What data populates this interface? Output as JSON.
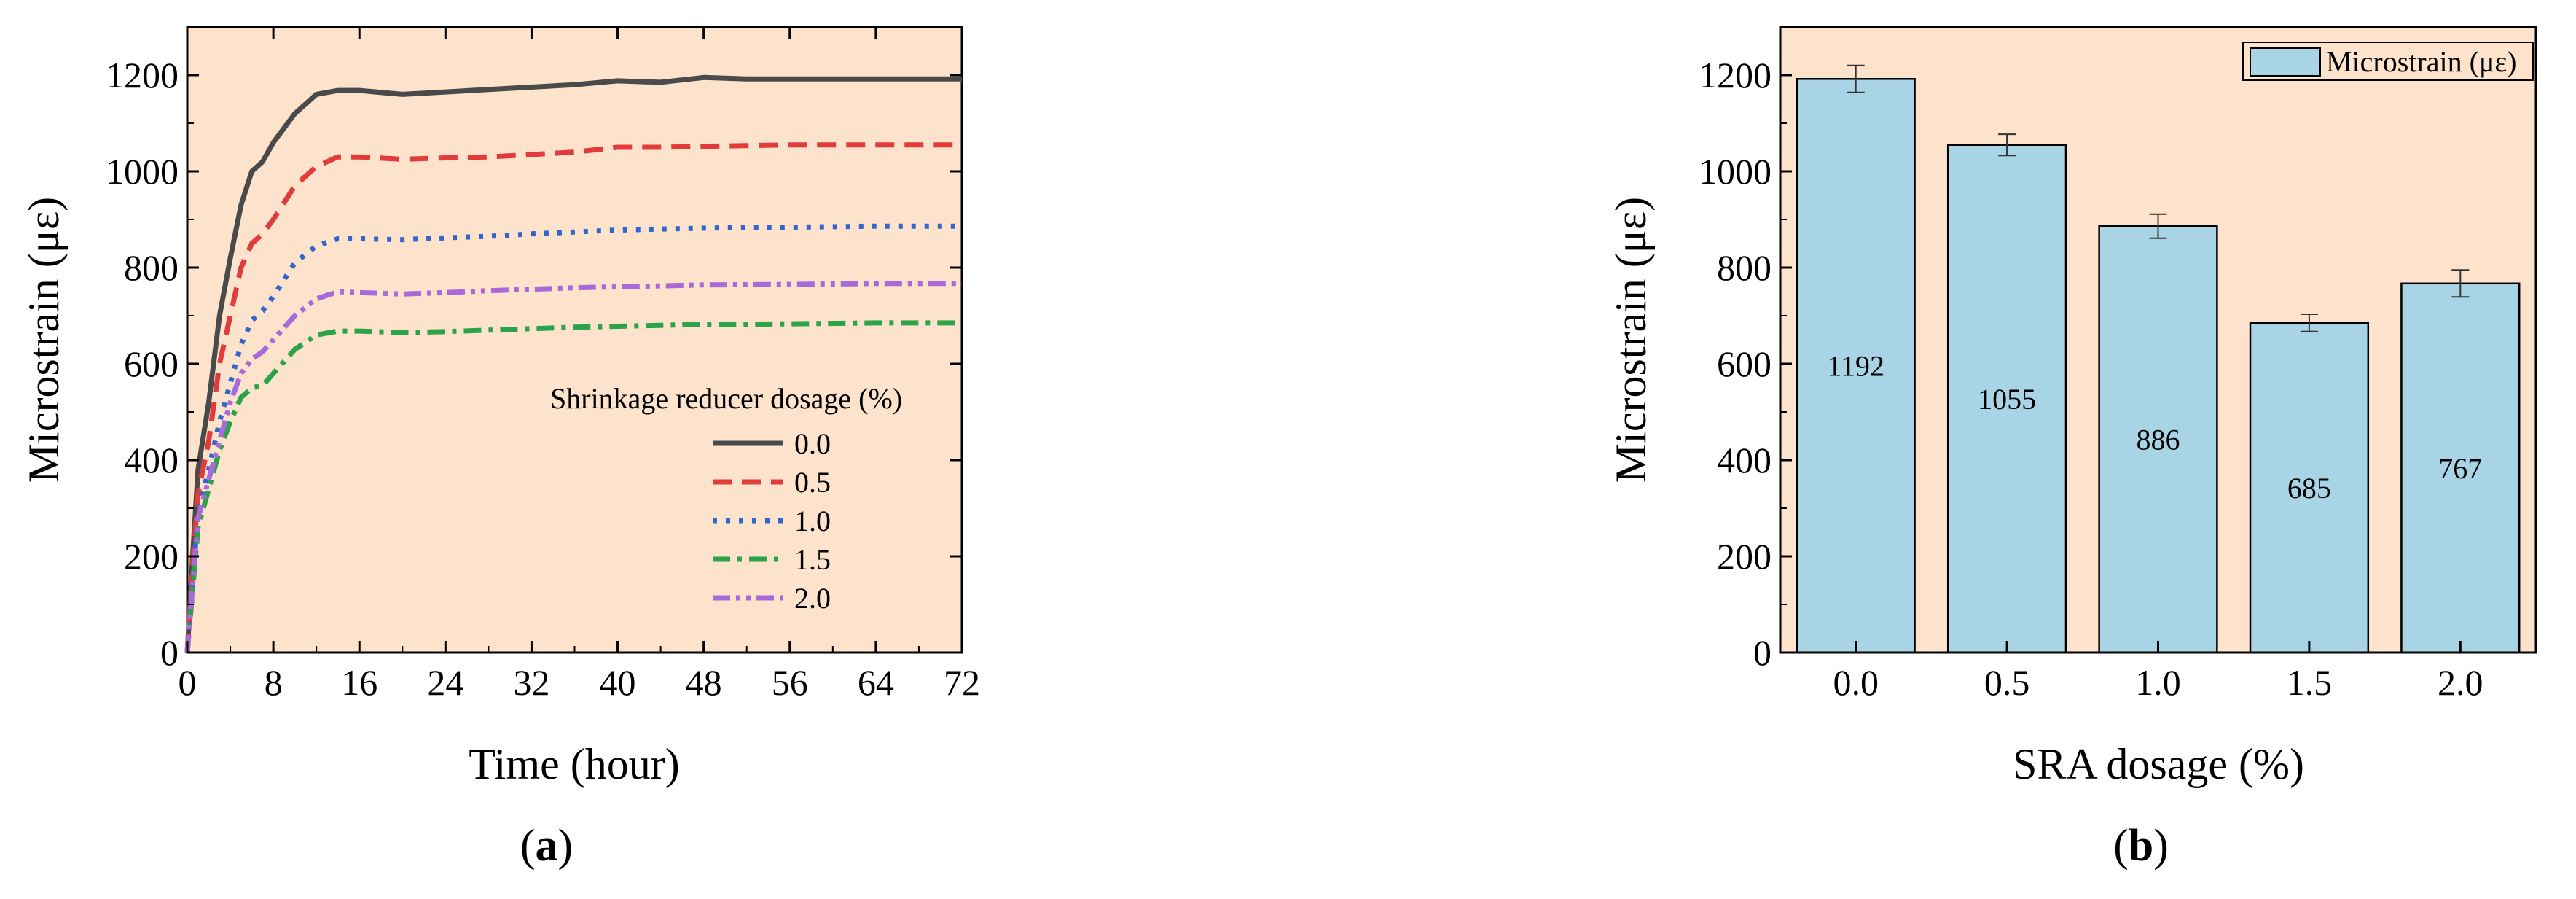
{
  "chart_data": [
    {
      "type": "line",
      "panel_label": "a",
      "xlabel": "Time (hour)",
      "ylabel": "Microstrain (με)",
      "xlim": [
        0,
        72
      ],
      "ylim": [
        0,
        1300
      ],
      "xticks": [
        0,
        8,
        16,
        24,
        32,
        40,
        48,
        56,
        64,
        72
      ],
      "yticks": [
        0,
        200,
        400,
        600,
        800,
        1000,
        1200
      ],
      "grid": false,
      "background": "#fde3cc",
      "legend": {
        "title": "Shrinkage reducer dosage (%)",
        "placement": "center-right"
      },
      "series": [
        {
          "name": "0.0",
          "color": "#4a4a4a",
          "dash": "solid",
          "points": [
            [
              0,
              0
            ],
            [
              0.5,
              200
            ],
            [
              1,
              380
            ],
            [
              2,
              520
            ],
            [
              3,
              700
            ],
            [
              4,
              820
            ],
            [
              5,
              930
            ],
            [
              6,
              1000
            ],
            [
              7,
              1020
            ],
            [
              8,
              1060
            ],
            [
              10,
              1120
            ],
            [
              12,
              1160
            ],
            [
              14,
              1168
            ],
            [
              16,
              1168
            ],
            [
              20,
              1160
            ],
            [
              24,
              1165
            ],
            [
              28,
              1170
            ],
            [
              32,
              1175
            ],
            [
              36,
              1180
            ],
            [
              40,
              1188
            ],
            [
              44,
              1185
            ],
            [
              48,
              1195
            ],
            [
              52,
              1192
            ],
            [
              56,
              1192
            ],
            [
              64,
              1192
            ],
            [
              72,
              1192
            ]
          ]
        },
        {
          "name": "0.5",
          "color": "#e23b3b",
          "dash": "dashed",
          "points": [
            [
              0,
              0
            ],
            [
              0.5,
              180
            ],
            [
              1,
              330
            ],
            [
              2,
              440
            ],
            [
              3,
              600
            ],
            [
              4,
              700
            ],
            [
              5,
              800
            ],
            [
              6,
              850
            ],
            [
              7,
              870
            ],
            [
              8,
              900
            ],
            [
              10,
              970
            ],
            [
              12,
              1010
            ],
            [
              14,
              1030
            ],
            [
              16,
              1030
            ],
            [
              20,
              1025
            ],
            [
              24,
              1028
            ],
            [
              28,
              1030
            ],
            [
              32,
              1035
            ],
            [
              36,
              1040
            ],
            [
              40,
              1050
            ],
            [
              44,
              1050
            ],
            [
              48,
              1052
            ],
            [
              56,
              1055
            ],
            [
              64,
              1055
            ],
            [
              72,
              1055
            ]
          ]
        },
        {
          "name": "1.0",
          "color": "#3366cc",
          "dash": "dotted",
          "points": [
            [
              0,
              0
            ],
            [
              0.5,
              150
            ],
            [
              1,
              290
            ],
            [
              2,
              380
            ],
            [
              3,
              480
            ],
            [
              4,
              560
            ],
            [
              5,
              640
            ],
            [
              6,
              690
            ],
            [
              7,
              710
            ],
            [
              8,
              740
            ],
            [
              10,
              810
            ],
            [
              12,
              845
            ],
            [
              14,
              860
            ],
            [
              16,
              860
            ],
            [
              20,
              858
            ],
            [
              24,
              862
            ],
            [
              28,
              865
            ],
            [
              32,
              870
            ],
            [
              36,
              874
            ],
            [
              40,
              878
            ],
            [
              44,
              880
            ],
            [
              48,
              882
            ],
            [
              56,
              884
            ],
            [
              64,
              886
            ],
            [
              72,
              886
            ]
          ]
        },
        {
          "name": "1.5",
          "color": "#2ca24a",
          "dash": "dashdot",
          "points": [
            [
              0,
              0
            ],
            [
              0.5,
              130
            ],
            [
              1,
              260
            ],
            [
              2,
              340
            ],
            [
              3,
              420
            ],
            [
              4,
              480
            ],
            [
              5,
              530
            ],
            [
              6,
              550
            ],
            [
              7,
              555
            ],
            [
              8,
              580
            ],
            [
              10,
              630
            ],
            [
              12,
              660
            ],
            [
              14,
              668
            ],
            [
              16,
              668
            ],
            [
              20,
              665
            ],
            [
              24,
              667
            ],
            [
              28,
              670
            ],
            [
              32,
              673
            ],
            [
              36,
              676
            ],
            [
              40,
              678
            ],
            [
              44,
              680
            ],
            [
              48,
              682
            ],
            [
              56,
              683
            ],
            [
              64,
              685
            ],
            [
              72,
              685
            ]
          ]
        },
        {
          "name": "2.0",
          "color": "#a86ad8",
          "dash": "dashdotdot",
          "points": [
            [
              0,
              0
            ],
            [
              0.5,
              140
            ],
            [
              1,
              280
            ],
            [
              2,
              360
            ],
            [
              3,
              440
            ],
            [
              4,
              520
            ],
            [
              5,
              580
            ],
            [
              6,
              610
            ],
            [
              7,
              625
            ],
            [
              8,
              650
            ],
            [
              10,
              700
            ],
            [
              12,
              735
            ],
            [
              14,
              750
            ],
            [
              16,
              748
            ],
            [
              20,
              745
            ],
            [
              24,
              748
            ],
            [
              28,
              752
            ],
            [
              32,
              755
            ],
            [
              36,
              758
            ],
            [
              40,
              760
            ],
            [
              44,
              762
            ],
            [
              48,
              764
            ],
            [
              56,
              765
            ],
            [
              64,
              767
            ],
            [
              72,
              767
            ]
          ]
        }
      ]
    },
    {
      "type": "bar",
      "panel_label": "b",
      "xlabel": "SRA dosage (%)",
      "ylabel": "Microstrain (με)",
      "ylim": [
        0,
        1300
      ],
      "yticks": [
        0,
        200,
        400,
        600,
        800,
        1000,
        1200
      ],
      "grid": false,
      "background": "#fde3cc",
      "bar_color": "#a9d4e6",
      "legend": {
        "placement": "top-right"
      },
      "categories": [
        "0.0",
        "0.5",
        "1.0",
        "1.5",
        "2.0"
      ],
      "series": [
        {
          "name": "Microstrain (με)",
          "values": [
            1192,
            1055,
            886,
            685,
            767
          ],
          "errors": [
            28,
            22,
            25,
            18,
            28
          ],
          "labels": [
            "1192",
            "1055",
            "886",
            "685",
            "767"
          ]
        }
      ]
    }
  ]
}
